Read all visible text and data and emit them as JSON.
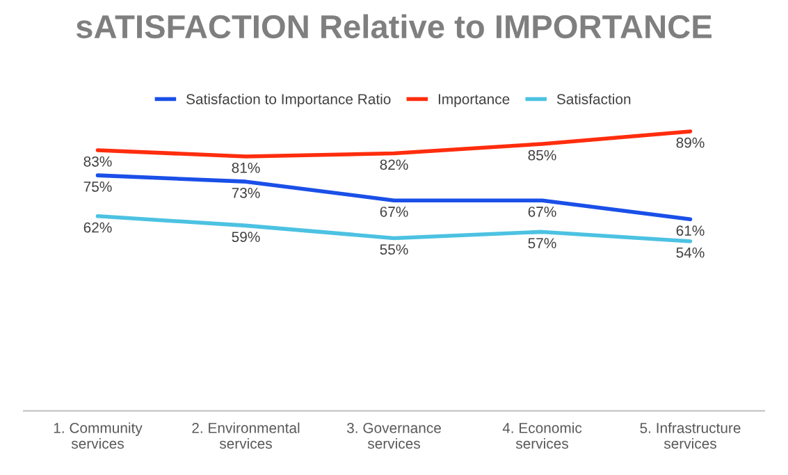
{
  "chart_data": {
    "type": "line",
    "title": "sATISFACTION Relative to IMPORTANCE",
    "categories": [
      "1. Community services",
      "2. Environmental services",
      "3. Governance services",
      "4. Economic services",
      "5. Infrastructure services"
    ],
    "series": [
      {
        "name": "Satisfaction to Importance Ratio",
        "color": "#1a4fe8",
        "values": [
          75,
          73,
          67,
          67,
          61
        ],
        "value_labels": [
          "75%",
          "73%",
          "67%",
          "67%",
          "61%"
        ]
      },
      {
        "name": "Importance",
        "color": "#ff2d0d",
        "values": [
          83,
          81,
          82,
          85,
          89
        ],
        "value_labels": [
          "83%",
          "81%",
          "82%",
          "85%",
          "89%"
        ]
      },
      {
        "name": "Satisfaction",
        "color": "#4cc2e2",
        "values": [
          62,
          59,
          55,
          57,
          54
        ],
        "value_labels": [
          "62%",
          "59%",
          "55%",
          "57%",
          "54%"
        ]
      }
    ],
    "tick_labels": "x",
    "legend": "top",
    "grid": false,
    "marker": "none",
    "line_style": "solid"
  }
}
